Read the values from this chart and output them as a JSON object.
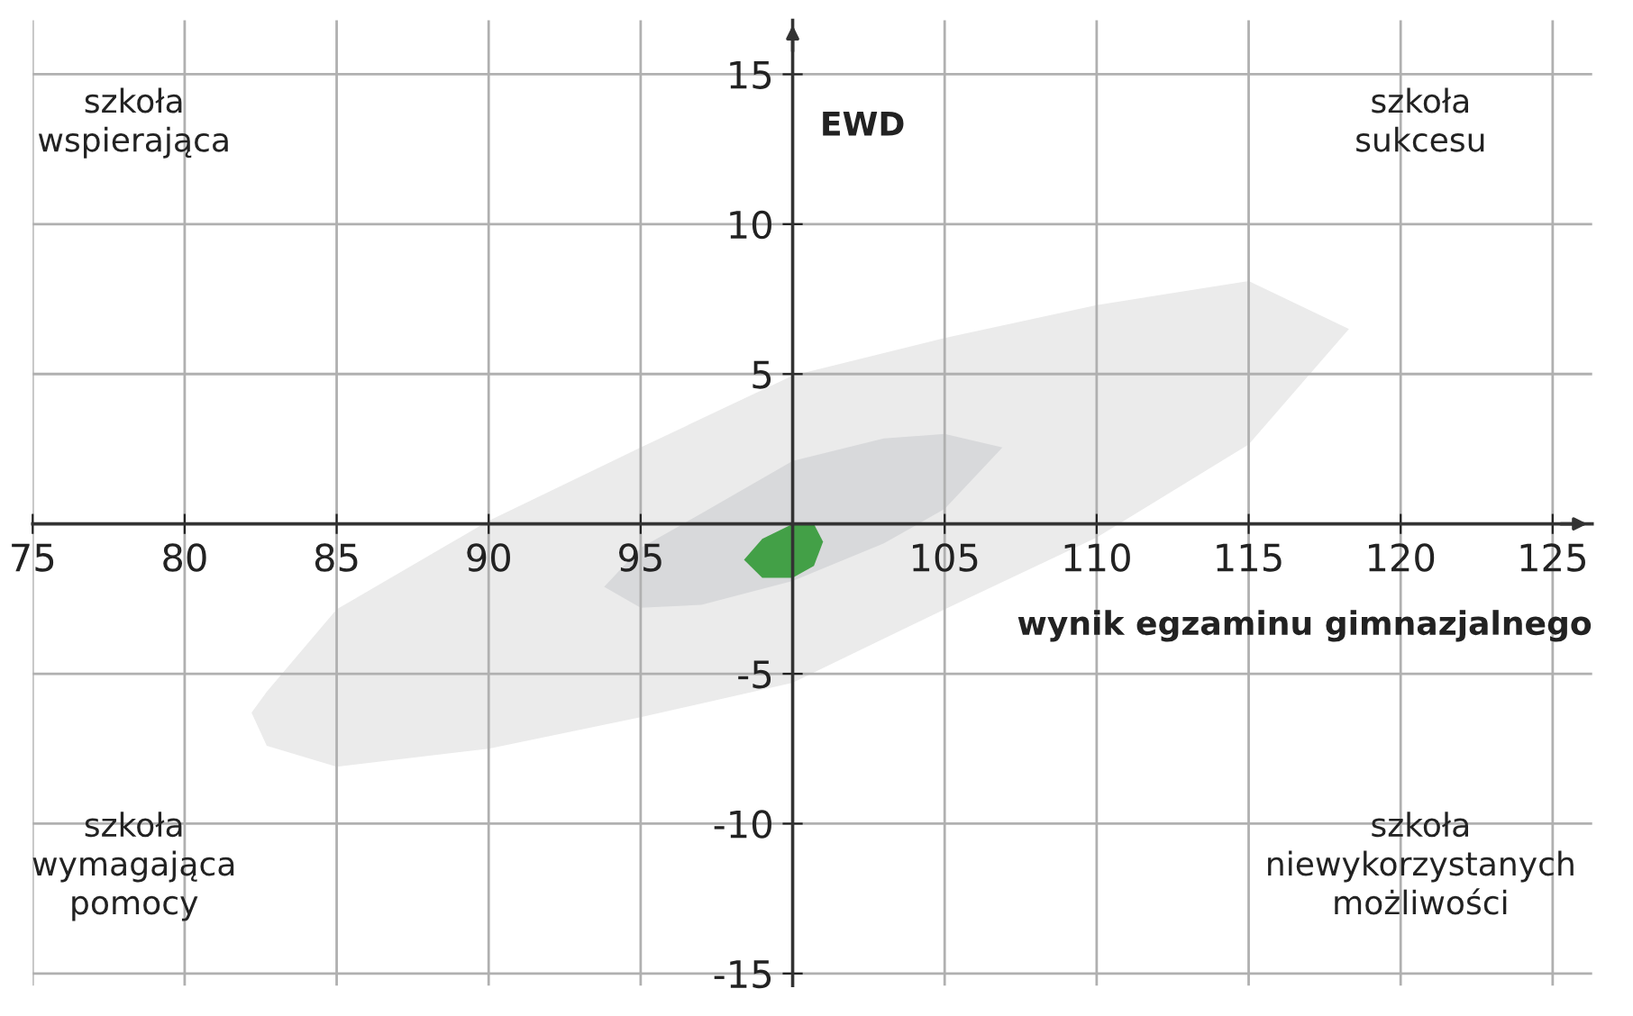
{
  "chart_data": {
    "type": "area",
    "xlabel": "wynik egzaminu gimnazjalnego",
    "ylabel": "EWD",
    "annotations": [
      "szkoła\nwspierająca",
      "szkoła\nsukcesu",
      "szkoła\nwymagająca\npomocy",
      "szkoła\nniewykorzystanych\nmożliwości"
    ],
    "series": [
      {
        "color": "#ebebeb",
        "x": [
          82.2,
          82.7,
          85,
          90,
          95,
          100,
          105,
          110,
          115,
          118.3
        ],
        "values": [
          null,
          null,
          null,
          null,
          null,
          null,
          null,
          null,
          null,
          null
        ],
        "lower": [
          -6.3,
          -7.4,
          -8.1,
          -7.5,
          -6.45,
          -5.3,
          -2.85,
          -0.45,
          2.65,
          6.5
        ],
        "upper": [
          -6.3,
          -5.6,
          -2.85,
          0.1,
          2.55,
          4.95,
          6.2,
          7.3,
          8.1,
          6.5
        ]
      },
      {
        "color": "#d8d9db",
        "x": [
          93.8,
          95,
          97,
          100,
          103,
          105,
          106.9
        ],
        "values": [
          null,
          null,
          null,
          null,
          null,
          null,
          null
        ],
        "lower": [
          -2.1,
          -2.8,
          -2.7,
          -1.9,
          -0.65,
          0.5,
          2.55
        ],
        "upper": [
          -2.1,
          -0.8,
          0.35,
          2.1,
          2.85,
          3.0,
          2.55
        ]
      },
      {
        "color": "#43a047",
        "x": [
          98.4,
          99,
          100,
          100.7,
          101
        ],
        "values": [
          null,
          null,
          null,
          null,
          null
        ],
        "lower": [
          -1.2,
          -1.8,
          -1.8,
          -1.4,
          -0.6
        ],
        "upper": [
          -1.2,
          -0.5,
          0,
          0,
          -0.6
        ]
      }
    ],
    "xlim": [
      75,
      126.3
    ],
    "ylim": [
      -15.4,
      16.8
    ],
    "xticks": [
      75,
      80,
      85,
      90,
      95,
      {
        "value": 100,
        "label": null
      },
      105,
      110,
      115,
      120,
      125
    ],
    "yticks": [
      -15,
      -10,
      -5,
      {
        "value": 0,
        "label": null
      },
      5,
      10,
      15
    ],
    "grid": true,
    "legend": false
  }
}
